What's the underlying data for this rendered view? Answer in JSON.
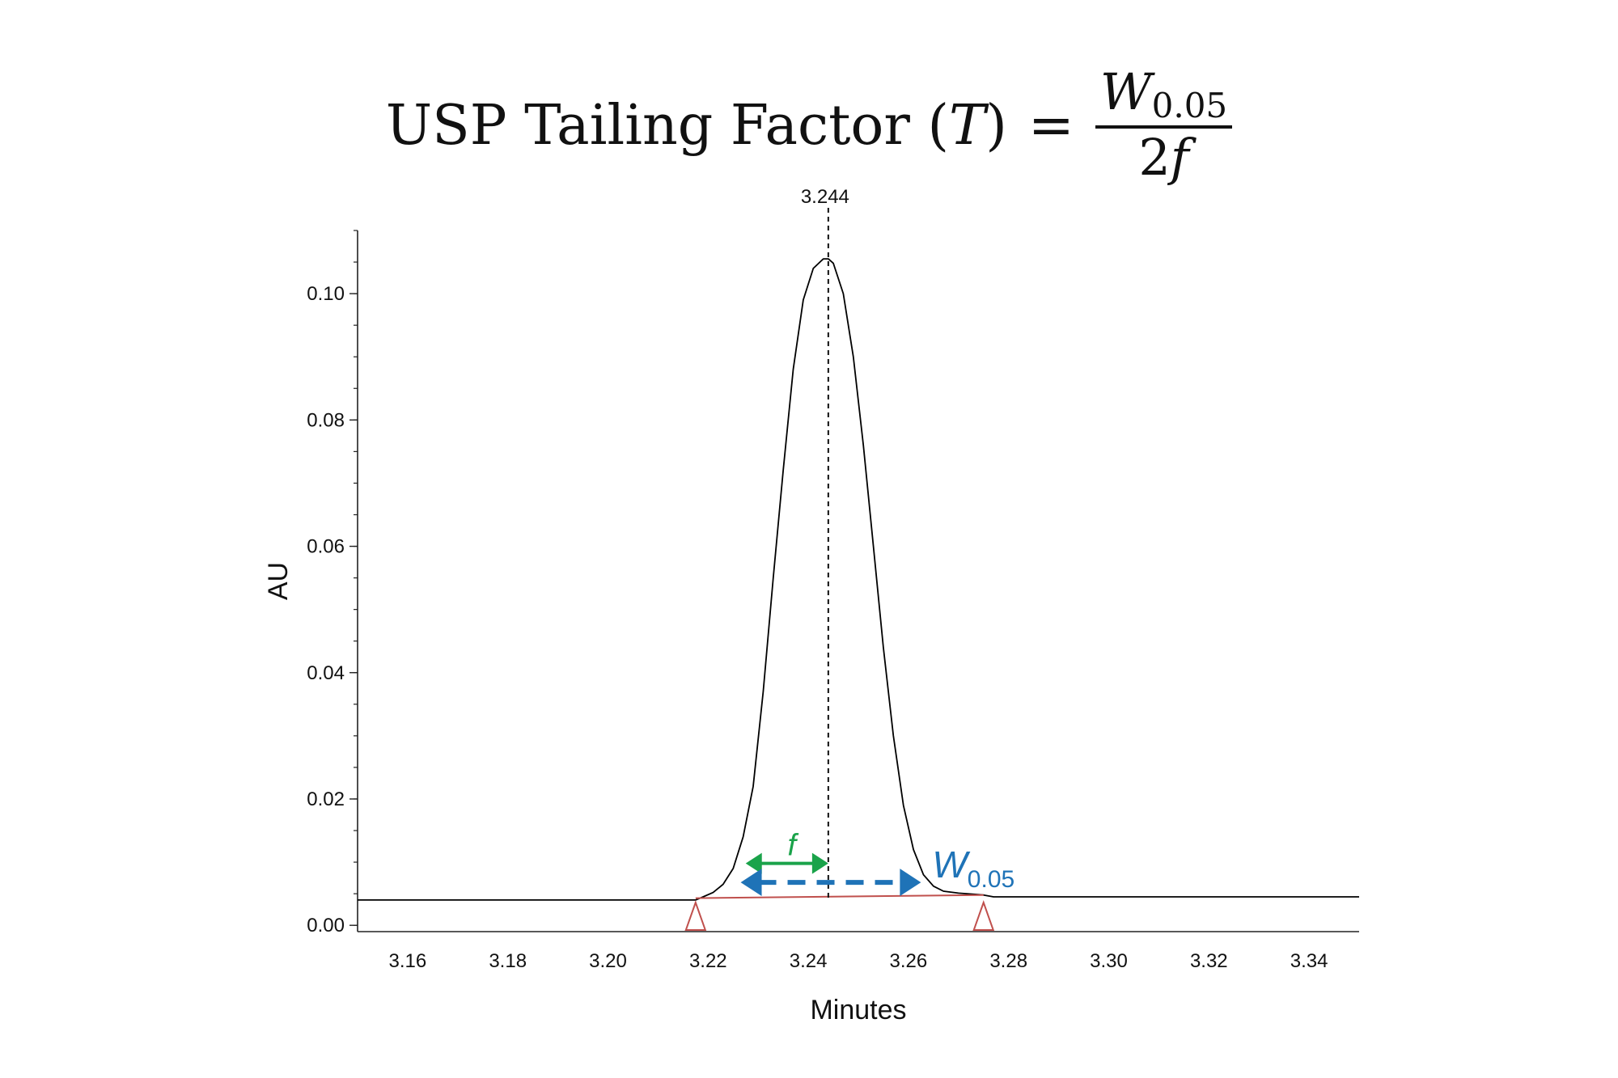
{
  "formula": {
    "lhs_text": "USP Tailing Factor (",
    "lhs_var": "T",
    "lhs_close": ")",
    "equals": "=",
    "numerator_var": "W",
    "numerator_sub": "0.05",
    "denominator_coef": "2",
    "denominator_var": "f"
  },
  "chart_data": {
    "type": "line",
    "title": "",
    "xlabel": "Minutes",
    "ylabel": "AU",
    "xlim": [
      3.15,
      3.35
    ],
    "ylim": [
      -0.001,
      0.11
    ],
    "x_ticks": [
      3.16,
      3.18,
      3.2,
      3.22,
      3.24,
      3.26,
      3.28,
      3.3,
      3.32,
      3.34
    ],
    "x_tick_labels": [
      "3.16",
      "3.18",
      "3.20",
      "3.22",
      "3.24",
      "3.26",
      "3.28",
      "3.30",
      "3.32",
      "3.34"
    ],
    "y_ticks": [
      0.0,
      0.02,
      0.04,
      0.06,
      0.08,
      0.1
    ],
    "y_tick_labels": [
      "0.00",
      "0.02",
      "0.04",
      "0.06",
      "0.08",
      "0.10"
    ],
    "y_minor_step": 0.005,
    "grid": false,
    "series": [
      {
        "color": "#000000",
        "x": [
          3.15,
          3.2175,
          3.219,
          3.221,
          3.223,
          3.225,
          3.227,
          3.229,
          3.231,
          3.233,
          3.235,
          3.237,
          3.239,
          3.241,
          3.243,
          3.244,
          3.245,
          3.247,
          3.249,
          3.251,
          3.253,
          3.255,
          3.257,
          3.259,
          3.261,
          3.263,
          3.265,
          3.267,
          3.27,
          3.275,
          3.277,
          3.35
        ],
        "y": [
          0.004,
          0.004,
          0.0045,
          0.0052,
          0.0065,
          0.009,
          0.014,
          0.022,
          0.037,
          0.055,
          0.072,
          0.088,
          0.099,
          0.104,
          0.1055,
          0.1055,
          0.1048,
          0.1,
          0.09,
          0.076,
          0.06,
          0.044,
          0.03,
          0.019,
          0.012,
          0.008,
          0.0062,
          0.0054,
          0.0051,
          0.0048,
          0.0045,
          0.0045
        ]
      }
    ],
    "baseline": {
      "color": "#c0504d",
      "x": [
        3.2175,
        3.275
      ],
      "y": [
        0.0043,
        0.0048
      ]
    },
    "markers": {
      "color": "#c0504d",
      "x": [
        3.2175,
        3.275
      ]
    },
    "peak": {
      "x": 3.244,
      "label": "3.244"
    },
    "annotations": [
      {
        "label": "f",
        "color": "#1aa34a",
        "x_start": 3.2275,
        "x_end": 3.244,
        "y": 0.0098
      },
      {
        "label_main": "W",
        "label_sub": "0.05",
        "color": "#1f73b7",
        "x_start": 3.2265,
        "x_end": 3.2625,
        "y": 0.0068
      }
    ]
  }
}
